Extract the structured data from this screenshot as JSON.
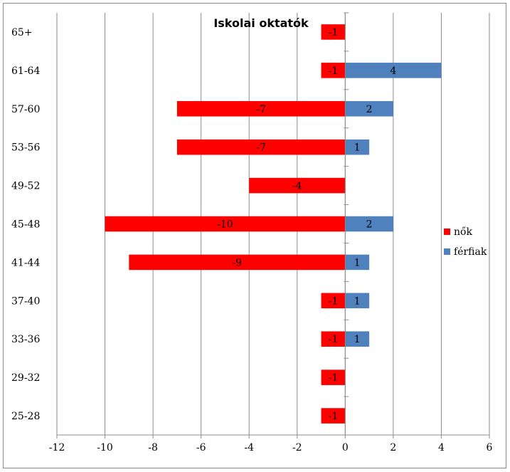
{
  "chart_data": {
    "type": "bar",
    "orientation": "horizontal",
    "stacked": true,
    "title": "Iskolai oktatók",
    "categories": [
      "65+",
      "61-64",
      "57-60",
      "53-56",
      "49-52",
      "45-48",
      "41-44",
      "37-40",
      "33-36",
      "29-32",
      "25-28"
    ],
    "series": [
      {
        "name": "nők",
        "color": "#ff0000",
        "values": [
          -1,
          -1,
          -7,
          -7,
          -4,
          -10,
          -9,
          -1,
          -1,
          -1,
          -1
        ]
      },
      {
        "name": "férfiak",
        "color": "#4f81bd",
        "values": [
          0,
          4,
          2,
          1,
          0,
          2,
          1,
          1,
          1,
          0,
          0
        ]
      }
    ],
    "xlim": [
      -12,
      6
    ],
    "xticks": [
      -12,
      -10,
      -8,
      -6,
      -4,
      -2,
      0,
      2,
      4,
      6
    ],
    "grid": "vertical",
    "legend": "right",
    "xlabel": "",
    "ylabel": ""
  }
}
